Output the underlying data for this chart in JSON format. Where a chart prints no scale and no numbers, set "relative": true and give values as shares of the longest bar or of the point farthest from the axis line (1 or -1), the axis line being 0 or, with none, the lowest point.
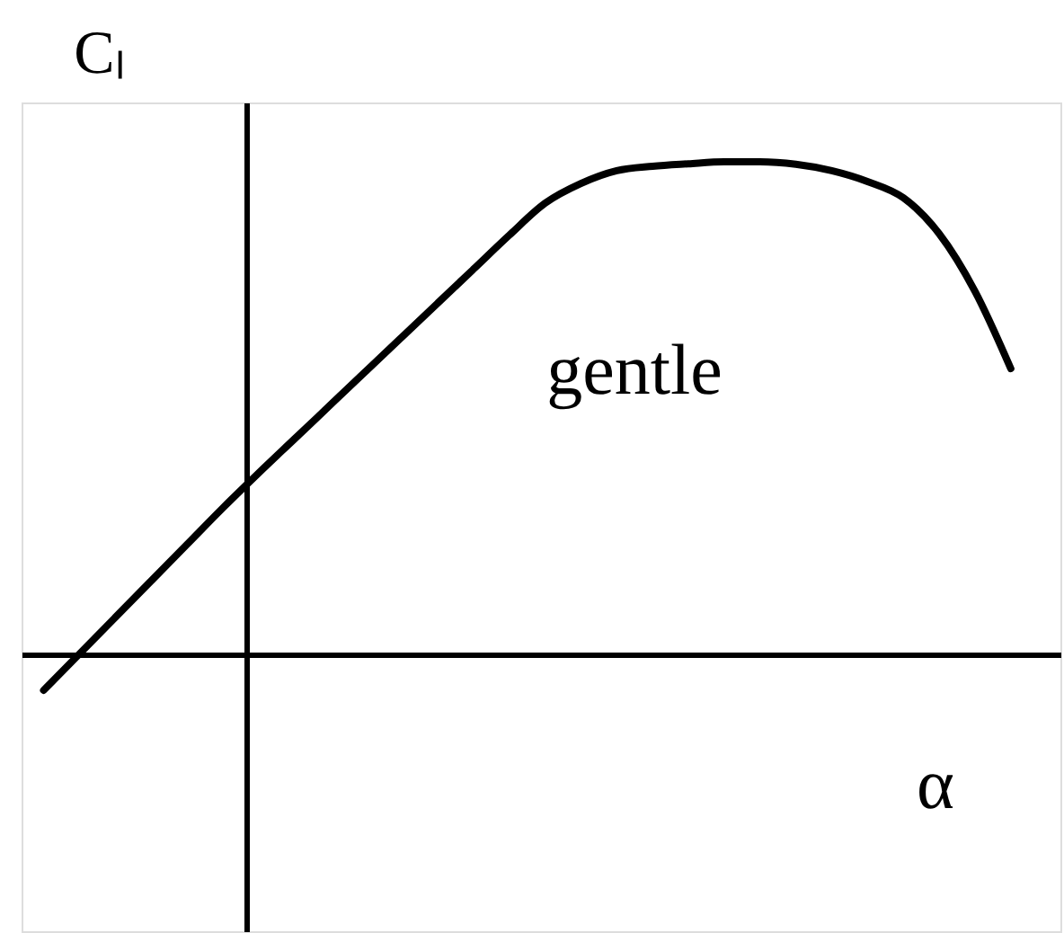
{
  "chart_data": {
    "type": "line",
    "xlabel": "α",
    "ylabel": "Cₗ",
    "annotations": [
      "gentle"
    ],
    "relative": true,
    "categories": [
      null,
      null,
      null,
      null,
      null,
      null,
      null,
      null,
      null,
      null,
      null,
      null,
      null,
      null,
      null,
      null,
      null,
      null,
      null,
      null,
      null,
      null,
      null,
      null,
      null,
      null,
      null,
      null
    ],
    "series": [
      {
        "color": "#000000",
        "values": [
          -0.073,
          0.001,
          0.075,
          0.149,
          0.223,
          0.297,
          0.368,
          0.437,
          0.506,
          0.575,
          0.644,
          0.713,
          0.782,
          0.851,
          0.916,
          0.956,
          0.982,
          0.991,
          0.996,
          1.0,
          1.0,
          0.995,
          0.982,
          0.96,
          0.927,
          0.854,
          0.737,
          0.58
        ]
      }
    ]
  }
}
